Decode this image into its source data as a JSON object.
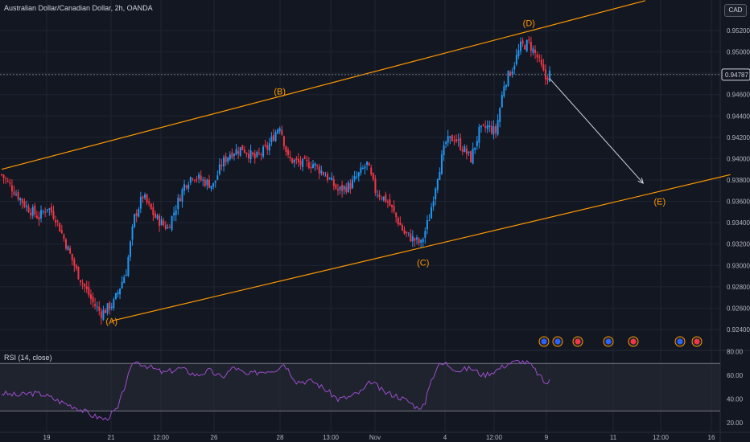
{
  "header": {
    "title": "Australian Dollar/Canadian Dollar, 2h, OANDA",
    "currency_button": "CAD",
    "rsi_label": "RSI (14, close)"
  },
  "colors": {
    "background": "#131722",
    "up": "#2196f3",
    "down": "#f23645",
    "channel": "#ff9800",
    "rsi": "#9c4dcc",
    "arrow": "#d1d4dc"
  },
  "chart_data": [
    {
      "type": "candlestick",
      "title": "Australian Dollar/Canadian Dollar, 2h, OANDA",
      "y_axis": {
        "labels": [
          "0.95200",
          "0.95000",
          "0.94800",
          "0.94600",
          "0.94400",
          "0.94200",
          "0.94000",
          "0.93800",
          "0.93600",
          "0.93400",
          "0.93200",
          "0.93000",
          "0.92800",
          "0.92600",
          "0.92400"
        ],
        "range": [
          0.9232,
          0.954
        ]
      },
      "x_axis": {
        "labels": [
          "19",
          "21",
          "12:00",
          "26",
          "28",
          "13:00",
          "Nov",
          "4",
          "12:00",
          "9",
          "11",
          "12:00",
          "16"
        ]
      },
      "last_price": "0.94787",
      "close_anchors": [
        [
          0,
          0.9385
        ],
        [
          4,
          0.9375
        ],
        [
          12,
          0.9355
        ],
        [
          18,
          0.9345
        ],
        [
          22,
          0.9355
        ],
        [
          26,
          0.9345
        ],
        [
          30,
          0.9325
        ],
        [
          36,
          0.9295
        ],
        [
          44,
          0.9265
        ],
        [
          48,
          0.9255
        ],
        [
          54,
          0.9265
        ],
        [
          60,
          0.9295
        ],
        [
          64,
          0.9345
        ],
        [
          68,
          0.9365
        ],
        [
          74,
          0.9345
        ],
        [
          80,
          0.9335
        ],
        [
          84,
          0.9355
        ],
        [
          88,
          0.9375
        ],
        [
          92,
          0.9385
        ],
        [
          96,
          0.938
        ],
        [
          102,
          0.9375
        ],
        [
          106,
          0.9395
        ],
        [
          110,
          0.9405
        ],
        [
          116,
          0.941
        ],
        [
          122,
          0.94
        ],
        [
          128,
          0.941
        ],
        [
          132,
          0.9425
        ],
        [
          134,
          0.9432
        ],
        [
          138,
          0.94
        ],
        [
          144,
          0.9395
        ],
        [
          150,
          0.9395
        ],
        [
          156,
          0.9385
        ],
        [
          162,
          0.937
        ],
        [
          168,
          0.9375
        ],
        [
          172,
          0.9385
        ],
        [
          176,
          0.9395
        ],
        [
          180,
          0.937
        ],
        [
          186,
          0.936
        ],
        [
          190,
          0.9345
        ],
        [
          194,
          0.933
        ],
        [
          198,
          0.9325
        ],
        [
          202,
          0.932
        ],
        [
          206,
          0.9345
        ],
        [
          210,
          0.9385
        ],
        [
          214,
          0.9415
        ],
        [
          218,
          0.942
        ],
        [
          222,
          0.941
        ],
        [
          226,
          0.94
        ],
        [
          230,
          0.9425
        ],
        [
          234,
          0.943
        ],
        [
          238,
          0.9425
        ],
        [
          242,
          0.947
        ],
        [
          246,
          0.9485
        ],
        [
          250,
          0.9505
        ],
        [
          254,
          0.9508
        ],
        [
          258,
          0.9495
        ],
        [
          262,
          0.9475
        ],
        [
          264,
          0.948
        ]
      ],
      "waves": [
        {
          "label": "(A)",
          "x": 53,
          "y": 0.9248
        },
        {
          "label": "(B)",
          "x": 134,
          "y": 0.9463
        },
        {
          "label": "(C)",
          "x": 203,
          "y": 0.9303
        },
        {
          "label": "(D)",
          "x": 254,
          "y": 0.9527
        },
        {
          "label": "(E)",
          "x": 317,
          "y": 0.936
        }
      ],
      "channel_upper": [
        [
          0,
          0.939
        ],
        [
          310,
          0.9548
        ]
      ],
      "channel_lower": [
        [
          53,
          0.9248
        ],
        [
          351,
          0.9385
        ]
      ],
      "projection_arrow": [
        [
          264,
          0.9475
        ],
        [
          309,
          0.9377
        ]
      ],
      "event_icons": [
        "flag-au-icon",
        "flag-au-icon",
        "flag-ca-icon",
        "flag-au-icon",
        "flag-ca-icon",
        "flag-au-icon",
        "flag-ca-icon"
      ]
    },
    {
      "type": "line",
      "title": "RSI (14, close)",
      "y_axis": {
        "labels": [
          "80.00",
          "60.00",
          "40.00",
          "20.00"
        ],
        "range": [
          20,
          80
        ]
      },
      "bands": [
        30,
        70
      ],
      "series": [
        {
          "values_anchors": [
            [
              0,
              45
            ],
            [
              8,
              43
            ],
            [
              14,
              45
            ],
            [
              20,
              44
            ],
            [
              28,
              38
            ],
            [
              36,
              33
            ],
            [
              44,
              26
            ],
            [
              50,
              23
            ],
            [
              56,
              32
            ],
            [
              60,
              55
            ],
            [
              64,
              72
            ],
            [
              70,
              68
            ],
            [
              78,
              62
            ],
            [
              86,
              66
            ],
            [
              94,
              60
            ],
            [
              100,
              64
            ],
            [
              106,
              58
            ],
            [
              112,
              67
            ],
            [
              118,
              60
            ],
            [
              124,
              63
            ],
            [
              132,
              65
            ],
            [
              136,
              70
            ],
            [
              142,
              55
            ],
            [
              150,
              55
            ],
            [
              156,
              48
            ],
            [
              162,
              40
            ],
            [
              168,
              42
            ],
            [
              174,
              47
            ],
            [
              178,
              55
            ],
            [
              184,
              46
            ],
            [
              190,
              43
            ],
            [
              196,
              38
            ],
            [
              200,
              33
            ],
            [
              204,
              35
            ],
            [
              206,
              52
            ],
            [
              210,
              68
            ],
            [
              214,
              70
            ],
            [
              220,
              64
            ],
            [
              226,
              66
            ],
            [
              232,
              60
            ],
            [
              238,
              64
            ],
            [
              244,
              70
            ],
            [
              250,
              72
            ],
            [
              254,
              70
            ],
            [
              258,
              62
            ],
            [
              262,
              53
            ],
            [
              264,
              55
            ]
          ]
        }
      ]
    }
  ]
}
